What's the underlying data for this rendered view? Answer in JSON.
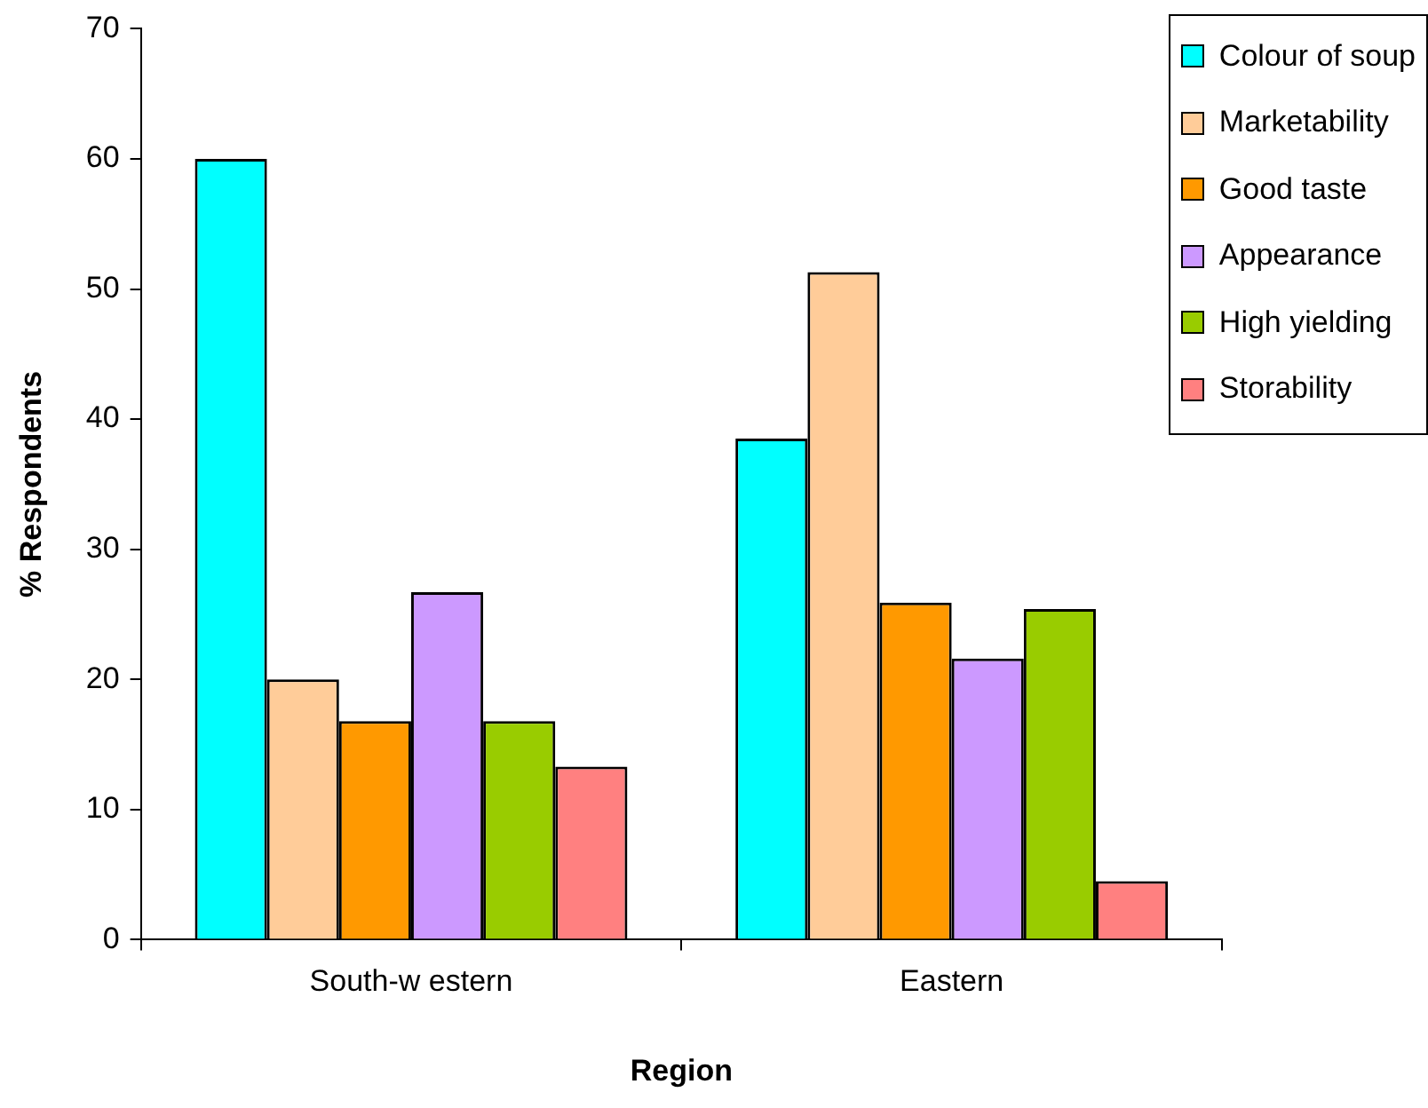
{
  "chart_data": {
    "type": "bar",
    "xlabel": "Region",
    "ylabel": "% Respondents",
    "categories": [
      "South-w estern",
      "Eastern"
    ],
    "series": [
      {
        "name": "Colour of soup",
        "color": "#00ffff",
        "values": [
          60,
          38.5
        ]
      },
      {
        "name": "Marketability",
        "color": "#ffcc99",
        "values": [
          20,
          51.3
        ]
      },
      {
        "name": "Good taste",
        "color": "#ff9900",
        "values": [
          16.8,
          25.9
        ]
      },
      {
        "name": "Appearance",
        "color": "#cc99ff",
        "values": [
          26.7,
          21.6
        ]
      },
      {
        "name": "High yielding",
        "color": "#99cc00",
        "values": [
          16.8,
          25.4
        ]
      },
      {
        "name": "Storability",
        "color": "#ff8080",
        "values": [
          13.3,
          4.5
        ]
      }
    ],
    "ylim": [
      0,
      70
    ],
    "yticks": [
      0,
      10,
      20,
      30,
      40,
      50,
      60,
      70
    ],
    "grid": false,
    "legend": "top right"
  }
}
